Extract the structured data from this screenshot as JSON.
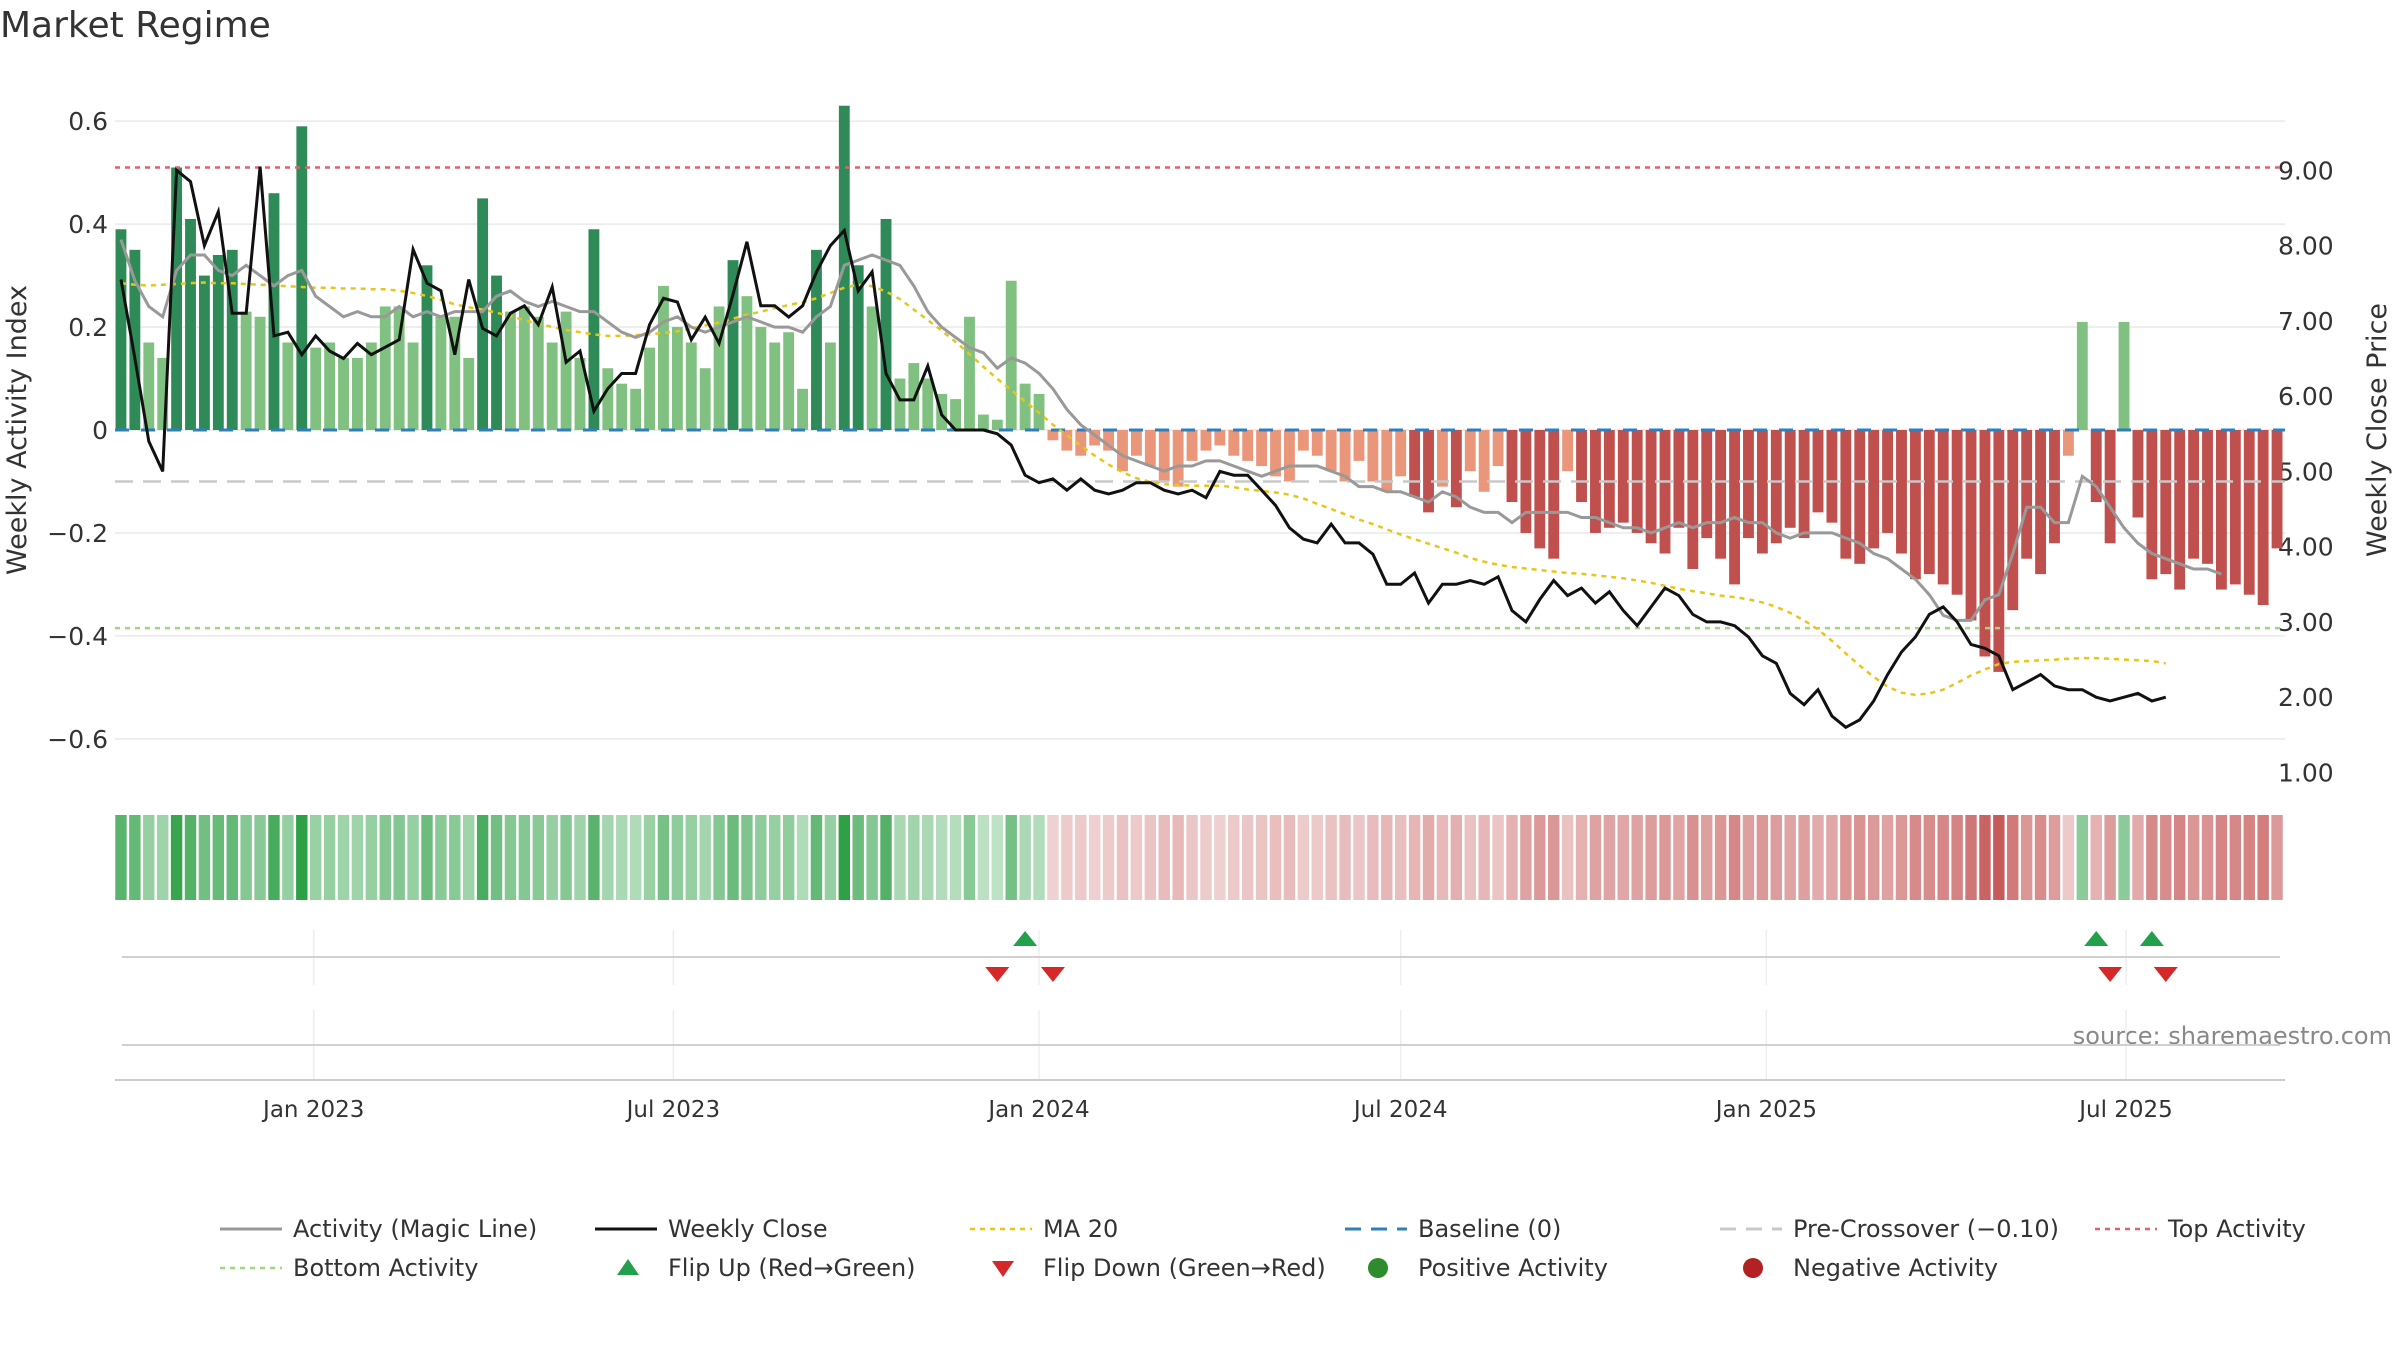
{
  "title": "Market Regime",
  "source": "source: sharemaestro.com",
  "colors": {
    "pos_dark": "#2e8b57",
    "pos_light": "#80c080",
    "neg_dark": "#c0504d",
    "neg_light": "#e9967a",
    "magic": "#999999",
    "close": "#111111",
    "ma20": "#e6c619",
    "baseline": "#2f7fbf",
    "pre": "#c8c8c8",
    "top": "#e06070",
    "bottom": "#9fd67f",
    "flip_up": "#22a04b",
    "flip_down": "#d62828",
    "grid": "#e9e9e9"
  },
  "chart_data": {
    "type": "bar+line",
    "ylabel_left": "Weekly Activity Index",
    "ylabel_right": "Weekly Close Price",
    "left_ticks": [
      0.6,
      0.4,
      0.2,
      0,
      -0.2,
      -0.4,
      -0.6
    ],
    "left_tick_labels": [
      "0.6",
      "0.4",
      "0.2",
      "0",
      "−0.2",
      "−0.4",
      "−0.6"
    ],
    "left_ylim": [
      -0.68,
      0.68
    ],
    "right_ticks": [
      9,
      8,
      7,
      6,
      5,
      4,
      3,
      2,
      1
    ],
    "right_tick_labels": [
      "9.00",
      "8.00",
      "7.00",
      "6.00",
      "5.00",
      "4.00",
      "3.00",
      "2.00",
      "1.00"
    ],
    "right_ylim": [
      0.9,
      10.2
    ],
    "x_ticks": [
      "2023-01-01",
      "2023-07-01",
      "2024-01-01",
      "2024-07-01",
      "2025-01-01",
      "2025-07-01"
    ],
    "x_tick_labels": [
      "Jan 2023",
      "Jul 2023",
      "Jan 2024",
      "Jul 2024",
      "Jan 2025",
      "Jul 2025"
    ],
    "x_range": [
      "2022-09-23",
      "2025-09-19"
    ],
    "start_date": "2022-09-26",
    "top_activity": 0.51,
    "bottom_activity": -0.385,
    "pre_crossover": -0.1,
    "baseline": 0,
    "activity": [
      0.39,
      0.35,
      0.17,
      0.14,
      0.51,
      0.41,
      0.3,
      0.34,
      0.35,
      0.23,
      0.22,
      0.46,
      0.17,
      0.59,
      0.16,
      0.17,
      0.14,
      0.14,
      0.17,
      0.24,
      0.24,
      0.17,
      0.32,
      0.22,
      0.22,
      0.14,
      0.45,
      0.3,
      0.23,
      0.24,
      0.22,
      0.17,
      0.23,
      0.14,
      0.39,
      0.12,
      0.09,
      0.08,
      0.16,
      0.28,
      0.2,
      0.17,
      0.12,
      0.24,
      0.33,
      0.26,
      0.2,
      0.17,
      0.19,
      0.08,
      0.35,
      0.17,
      0.63,
      0.32,
      0.24,
      0.41,
      0.1,
      0.13,
      0.1,
      0.07,
      0.06,
      0.22,
      0.03,
      0.02,
      0.29,
      0.09,
      0.07,
      -0.02,
      -0.04,
      -0.05,
      -0.03,
      -0.04,
      -0.08,
      -0.05,
      -0.07,
      -0.1,
      -0.11,
      -0.06,
      -0.04,
      -0.03,
      -0.05,
      -0.06,
      -0.07,
      -0.09,
      -0.1,
      -0.04,
      -0.05,
      -0.08,
      -0.1,
      -0.06,
      -0.1,
      -0.12,
      -0.09,
      -0.13,
      -0.16,
      -0.11,
      -0.15,
      -0.08,
      -0.12,
      -0.07,
      -0.14,
      -0.2,
      -0.23,
      -0.25,
      -0.08,
      -0.14,
      -0.2,
      -0.19,
      -0.18,
      -0.2,
      -0.22,
      -0.24,
      -0.19,
      -0.27,
      -0.21,
      -0.25,
      -0.3,
      -0.21,
      -0.24,
      -0.22,
      -0.19,
      -0.21,
      -0.16,
      -0.18,
      -0.25,
      -0.26,
      -0.23,
      -0.2,
      -0.24,
      -0.29,
      -0.28,
      -0.3,
      -0.32,
      -0.37,
      -0.44,
      -0.47,
      -0.35,
      -0.25,
      -0.28,
      -0.22,
      -0.05,
      0.21,
      -0.14,
      -0.22,
      0.21,
      -0.17,
      -0.29,
      -0.28,
      -0.31,
      -0.25,
      -0.26,
      -0.31,
      -0.3,
      -0.32,
      -0.34,
      -0.23
    ],
    "close": [
      7.55,
      6.5,
      5.4,
      5.0,
      9.0,
      8.85,
      8.0,
      8.45,
      7.1,
      7.1,
      9.05,
      6.8,
      6.85,
      6.55,
      6.8,
      6.6,
      6.5,
      6.7,
      6.55,
      6.65,
      6.75,
      7.95,
      7.5,
      7.4,
      6.55,
      7.55,
      6.9,
      6.8,
      7.1,
      7.2,
      6.95,
      7.45,
      6.45,
      6.6,
      5.8,
      6.1,
      6.3,
      6.3,
      6.95,
      7.3,
      7.25,
      6.75,
      7.05,
      6.7,
      7.35,
      8.05,
      7.2,
      7.2,
      7.05,
      7.2,
      7.65,
      8.0,
      8.2,
      7.4,
      7.65,
      6.3,
      5.95,
      5.95,
      6.4,
      5.75,
      5.55,
      5.55,
      5.55,
      5.5,
      5.35,
      4.95,
      4.85,
      4.9,
      4.75,
      4.9,
      4.75,
      4.7,
      4.75,
      4.85,
      4.85,
      4.75,
      4.7,
      4.75,
      4.65,
      5.0,
      4.95,
      4.95,
      4.75,
      4.55,
      4.25,
      4.1,
      4.05,
      4.3,
      4.05,
      4.05,
      3.9,
      3.5,
      3.5,
      3.65,
      3.25,
      3.5,
      3.5,
      3.55,
      3.5,
      3.6,
      3.15,
      3.0,
      3.3,
      3.55,
      3.35,
      3.45,
      3.25,
      3.4,
      3.15,
      2.95,
      3.2,
      3.45,
      3.35,
      3.1,
      3.0,
      3.0,
      2.95,
      2.8,
      2.55,
      2.45,
      2.05,
      1.9,
      2.1,
      1.75,
      1.6,
      1.7,
      1.95,
      2.3,
      2.6,
      2.8,
      3.1,
      3.2,
      3.0,
      2.7,
      2.65,
      2.55,
      2.1,
      2.2,
      2.3,
      2.15,
      2.1,
      2.1,
      2.0,
      1.95,
      2.0,
      2.05,
      1.95,
      2.0
    ],
    "magic": [
      0.37,
      0.29,
      0.24,
      0.22,
      0.31,
      0.34,
      0.34,
      0.31,
      0.3,
      0.32,
      0.3,
      0.28,
      0.3,
      0.31,
      0.26,
      0.24,
      0.22,
      0.23,
      0.22,
      0.22,
      0.24,
      0.22,
      0.23,
      0.22,
      0.23,
      0.23,
      0.23,
      0.26,
      0.27,
      0.25,
      0.24,
      0.25,
      0.24,
      0.23,
      0.23,
      0.21,
      0.19,
      0.18,
      0.19,
      0.21,
      0.22,
      0.2,
      0.19,
      0.2,
      0.21,
      0.22,
      0.21,
      0.2,
      0.2,
      0.19,
      0.22,
      0.24,
      0.32,
      0.33,
      0.34,
      0.33,
      0.32,
      0.28,
      0.23,
      0.2,
      0.18,
      0.16,
      0.15,
      0.12,
      0.14,
      0.13,
      0.11,
      0.08,
      0.04,
      0.01,
      -0.01,
      -0.03,
      -0.05,
      -0.06,
      -0.07,
      -0.08,
      -0.07,
      -0.07,
      -0.06,
      -0.06,
      -0.07,
      -0.08,
      -0.09,
      -0.08,
      -0.07,
      -0.07,
      -0.07,
      -0.08,
      -0.09,
      -0.11,
      -0.11,
      -0.12,
      -0.12,
      -0.13,
      -0.14,
      -0.12,
      -0.13,
      -0.15,
      -0.16,
      -0.16,
      -0.18,
      -0.16,
      -0.16,
      -0.16,
      -0.16,
      -0.17,
      -0.17,
      -0.18,
      -0.19,
      -0.19,
      -0.2,
      -0.19,
      -0.18,
      -0.19,
      -0.18,
      -0.18,
      -0.17,
      -0.18,
      -0.18,
      -0.2,
      -0.21,
      -0.2,
      -0.2,
      -0.2,
      -0.21,
      -0.22,
      -0.24,
      -0.25,
      -0.27,
      -0.29,
      -0.32,
      -0.36,
      -0.37,
      -0.37,
      -0.33,
      -0.32,
      -0.24,
      -0.15,
      -0.15,
      -0.18,
      -0.18,
      -0.09,
      -0.11,
      -0.15,
      -0.19,
      -0.22,
      -0.24,
      -0.25,
      -0.26,
      -0.27,
      -0.27,
      -0.28
    ],
    "ma20": [
      7.5,
      7.48,
      7.47,
      7.48,
      7.49,
      7.5,
      7.51,
      7.5,
      7.5,
      7.49,
      7.48,
      7.47,
      7.46,
      7.45,
      7.44,
      7.44,
      7.43,
      7.43,
      7.42,
      7.42,
      7.4,
      7.37,
      7.33,
      7.28,
      7.22,
      7.18,
      7.15,
      7.11,
      7.06,
      7.01,
      6.96,
      6.92,
      6.88,
      6.85,
      6.82,
      6.8,
      6.8,
      6.81,
      6.82,
      6.84,
      6.86,
      6.9,
      6.94,
      6.98,
      7.03,
      7.08,
      7.12,
      7.17,
      7.21,
      7.25,
      7.3,
      7.37,
      7.44,
      7.48,
      7.46,
      7.39,
      7.29,
      7.15,
      7.01,
      6.87,
      6.72,
      6.56,
      6.39,
      6.23,
      6.08,
      5.93,
      5.78,
      5.62,
      5.48,
      5.34,
      5.21,
      5.09,
      4.99,
      4.91,
      4.86,
      4.83,
      4.82,
      4.81,
      4.81,
      4.81,
      4.79,
      4.76,
      4.74,
      4.72,
      4.69,
      4.64,
      4.57,
      4.5,
      4.43,
      4.36,
      4.3,
      4.23,
      4.16,
      4.1,
      4.04,
      3.98,
      3.92,
      3.85,
      3.8,
      3.76,
      3.73,
      3.71,
      3.69,
      3.67,
      3.65,
      3.64,
      3.62,
      3.6,
      3.58,
      3.55,
      3.52,
      3.48,
      3.44,
      3.41,
      3.38,
      3.35,
      3.33,
      3.3,
      3.26,
      3.2,
      3.12,
      3.02,
      2.9,
      2.75,
      2.58,
      2.42,
      2.27,
      2.14,
      2.06,
      2.03,
      2.05,
      2.1,
      2.19,
      2.29,
      2.37,
      2.44,
      2.47,
      2.48,
      2.49,
      2.5,
      2.51,
      2.52,
      2.52,
      2.51,
      2.5,
      2.49,
      2.48,
      2.45
    ],
    "flip_up_weeks": [
      65,
      142,
      146
    ],
    "flip_down_weeks": [
      63,
      67,
      143,
      147
    ],
    "legend": [
      {
        "label": "Activity (Magic Line)",
        "kind": "line",
        "color": "#999999"
      },
      {
        "label": "Weekly Close",
        "kind": "line",
        "color": "#111111"
      },
      {
        "label": "MA 20",
        "kind": "dotted",
        "color": "#e6c619"
      },
      {
        "label": "Baseline (0)",
        "kind": "dashed",
        "color": "#2f7fbf"
      },
      {
        "label": "Pre-Crossover (−0.10)",
        "kind": "dashed",
        "color": "#c8c8c8"
      },
      {
        "label": "Top Activity",
        "kind": "dotted",
        "color": "#e06070"
      },
      {
        "label": "Bottom Activity",
        "kind": "dotted",
        "color": "#9fd67f"
      },
      {
        "label": "Flip Up (Red→Green)",
        "kind": "tri-up",
        "color": "#22a04b"
      },
      {
        "label": "Flip Down (Green→Red)",
        "kind": "tri-down",
        "color": "#d62828"
      },
      {
        "label": "Positive Activity",
        "kind": "dot",
        "color": "#2e8b2e"
      },
      {
        "label": "Negative Activity",
        "kind": "dot",
        "color": "#b22222"
      }
    ]
  }
}
